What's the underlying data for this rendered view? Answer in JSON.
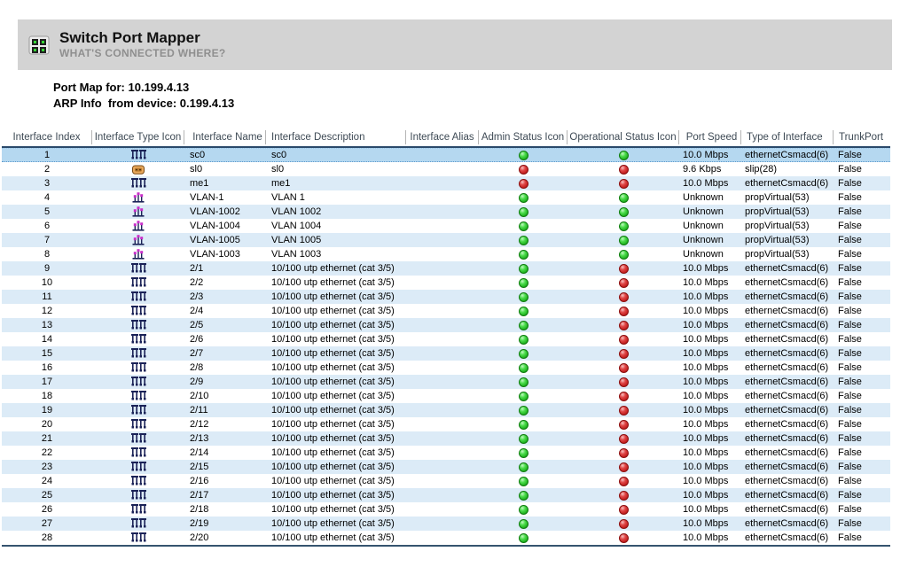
{
  "header": {
    "title": "Switch Port Mapper",
    "subtitle": "WHAT'S CONNECTED WHERE?",
    "app_icon": "switch-ports-icon"
  },
  "info": {
    "port_map_line": "Port Map for: 10.199.4.13",
    "arp_info_line": "ARP Info  from device: 0.199.4.13"
  },
  "colors": {
    "header_bar": "#d3d3d3",
    "row_alt": "#dcebf7",
    "row_selected": "#b5d8f0",
    "status_green": "#21b321",
    "status_red": "#c41f1f",
    "header_underline": "#2b4a6b",
    "vlan_icon_magenta": "#c92ec9",
    "ethernet_icon_navy": "#1a2257",
    "slip_icon_orange": "#e8a85c"
  },
  "table": {
    "columns": [
      "Interface Index",
      "Interface Type Icon",
      "Interface Name",
      "Interface Description",
      "Interface Alias",
      "Admin Status Icon",
      "Operational Status Icon",
      "Port Speed",
      "Type of Interface",
      "TrunkPort"
    ],
    "rows": [
      {
        "index": "1",
        "type_icon": "ethernet-icon",
        "name": "sc0",
        "description": "sc0",
        "alias": "",
        "admin_status": "green",
        "operational_status": "green",
        "port_speed": "10.0 Mbps",
        "type_of_interface": "ethernetCsmacd(6)",
        "trunk_port": "False",
        "selected": true
      },
      {
        "index": "2",
        "type_icon": "slip-icon",
        "name": "sl0",
        "description": "sl0",
        "alias": "",
        "admin_status": "red",
        "operational_status": "red",
        "port_speed": "9.6 Kbps",
        "type_of_interface": "slip(28)",
        "trunk_port": "False",
        "selected": false
      },
      {
        "index": "3",
        "type_icon": "ethernet-icon",
        "name": "me1",
        "description": "me1",
        "alias": "",
        "admin_status": "red",
        "operational_status": "red",
        "port_speed": "10.0 Mbps",
        "type_of_interface": "ethernetCsmacd(6)",
        "trunk_port": "False",
        "selected": false
      },
      {
        "index": "4",
        "type_icon": "vlan-icon",
        "name": "VLAN-1",
        "description": "VLAN 1",
        "alias": "",
        "admin_status": "green",
        "operational_status": "green",
        "port_speed": "Unknown",
        "type_of_interface": "propVirtual(53)",
        "trunk_port": "False",
        "selected": false
      },
      {
        "index": "5",
        "type_icon": "vlan-icon",
        "name": "VLAN-1002",
        "description": "VLAN 1002",
        "alias": "",
        "admin_status": "green",
        "operational_status": "green",
        "port_speed": "Unknown",
        "type_of_interface": "propVirtual(53)",
        "trunk_port": "False",
        "selected": false
      },
      {
        "index": "6",
        "type_icon": "vlan-icon",
        "name": "VLAN-1004",
        "description": "VLAN 1004",
        "alias": "",
        "admin_status": "green",
        "operational_status": "green",
        "port_speed": "Unknown",
        "type_of_interface": "propVirtual(53)",
        "trunk_port": "False",
        "selected": false
      },
      {
        "index": "7",
        "type_icon": "vlan-icon",
        "name": "VLAN-1005",
        "description": "VLAN 1005",
        "alias": "",
        "admin_status": "green",
        "operational_status": "green",
        "port_speed": "Unknown",
        "type_of_interface": "propVirtual(53)",
        "trunk_port": "False",
        "selected": false
      },
      {
        "index": "8",
        "type_icon": "vlan-icon",
        "name": "VLAN-1003",
        "description": "VLAN 1003",
        "alias": "",
        "admin_status": "green",
        "operational_status": "green",
        "port_speed": "Unknown",
        "type_of_interface": "propVirtual(53)",
        "trunk_port": "False",
        "selected": false
      },
      {
        "index": "9",
        "type_icon": "ethernet-icon",
        "name": "2/1",
        "description": "10/100 utp ethernet (cat 3/5)",
        "alias": "",
        "admin_status": "green",
        "operational_status": "red",
        "port_speed": "10.0 Mbps",
        "type_of_interface": "ethernetCsmacd(6)",
        "trunk_port": "False",
        "selected": false
      },
      {
        "index": "10",
        "type_icon": "ethernet-icon",
        "name": "2/2",
        "description": "10/100 utp ethernet (cat 3/5)",
        "alias": "",
        "admin_status": "green",
        "operational_status": "red",
        "port_speed": "10.0 Mbps",
        "type_of_interface": "ethernetCsmacd(6)",
        "trunk_port": "False",
        "selected": false
      },
      {
        "index": "11",
        "type_icon": "ethernet-icon",
        "name": "2/3",
        "description": "10/100 utp ethernet (cat 3/5)",
        "alias": "",
        "admin_status": "green",
        "operational_status": "red",
        "port_speed": "10.0 Mbps",
        "type_of_interface": "ethernetCsmacd(6)",
        "trunk_port": "False",
        "selected": false
      },
      {
        "index": "12",
        "type_icon": "ethernet-icon",
        "name": "2/4",
        "description": "10/100 utp ethernet (cat 3/5)",
        "alias": "",
        "admin_status": "green",
        "operational_status": "red",
        "port_speed": "10.0 Mbps",
        "type_of_interface": "ethernetCsmacd(6)",
        "trunk_port": "False",
        "selected": false
      },
      {
        "index": "13",
        "type_icon": "ethernet-icon",
        "name": "2/5",
        "description": "10/100 utp ethernet (cat 3/5)",
        "alias": "",
        "admin_status": "green",
        "operational_status": "red",
        "port_speed": "10.0 Mbps",
        "type_of_interface": "ethernetCsmacd(6)",
        "trunk_port": "False",
        "selected": false
      },
      {
        "index": "14",
        "type_icon": "ethernet-icon",
        "name": "2/6",
        "description": "10/100 utp ethernet (cat 3/5)",
        "alias": "",
        "admin_status": "green",
        "operational_status": "red",
        "port_speed": "10.0 Mbps",
        "type_of_interface": "ethernetCsmacd(6)",
        "trunk_port": "False",
        "selected": false
      },
      {
        "index": "15",
        "type_icon": "ethernet-icon",
        "name": "2/7",
        "description": "10/100 utp ethernet (cat 3/5)",
        "alias": "",
        "admin_status": "green",
        "operational_status": "red",
        "port_speed": "10.0 Mbps",
        "type_of_interface": "ethernetCsmacd(6)",
        "trunk_port": "False",
        "selected": false
      },
      {
        "index": "16",
        "type_icon": "ethernet-icon",
        "name": "2/8",
        "description": "10/100 utp ethernet (cat 3/5)",
        "alias": "",
        "admin_status": "green",
        "operational_status": "red",
        "port_speed": "10.0 Mbps",
        "type_of_interface": "ethernetCsmacd(6)",
        "trunk_port": "False",
        "selected": false
      },
      {
        "index": "17",
        "type_icon": "ethernet-icon",
        "name": "2/9",
        "description": "10/100 utp ethernet (cat 3/5)",
        "alias": "",
        "admin_status": "green",
        "operational_status": "red",
        "port_speed": "10.0 Mbps",
        "type_of_interface": "ethernetCsmacd(6)",
        "trunk_port": "False",
        "selected": false
      },
      {
        "index": "18",
        "type_icon": "ethernet-icon",
        "name": "2/10",
        "description": "10/100 utp ethernet (cat 3/5)",
        "alias": "",
        "admin_status": "green",
        "operational_status": "red",
        "port_speed": "10.0 Mbps",
        "type_of_interface": "ethernetCsmacd(6)",
        "trunk_port": "False",
        "selected": false
      },
      {
        "index": "19",
        "type_icon": "ethernet-icon",
        "name": "2/11",
        "description": "10/100 utp ethernet (cat 3/5)",
        "alias": "",
        "admin_status": "green",
        "operational_status": "red",
        "port_speed": "10.0 Mbps",
        "type_of_interface": "ethernetCsmacd(6)",
        "trunk_port": "False",
        "selected": false
      },
      {
        "index": "20",
        "type_icon": "ethernet-icon",
        "name": "2/12",
        "description": "10/100 utp ethernet (cat 3/5)",
        "alias": "",
        "admin_status": "green",
        "operational_status": "red",
        "port_speed": "10.0 Mbps",
        "type_of_interface": "ethernetCsmacd(6)",
        "trunk_port": "False",
        "selected": false
      },
      {
        "index": "21",
        "type_icon": "ethernet-icon",
        "name": "2/13",
        "description": "10/100 utp ethernet (cat 3/5)",
        "alias": "",
        "admin_status": "green",
        "operational_status": "red",
        "port_speed": "10.0 Mbps",
        "type_of_interface": "ethernetCsmacd(6)",
        "trunk_port": "False",
        "selected": false
      },
      {
        "index": "22",
        "type_icon": "ethernet-icon",
        "name": "2/14",
        "description": "10/100 utp ethernet (cat 3/5)",
        "alias": "",
        "admin_status": "green",
        "operational_status": "red",
        "port_speed": "10.0 Mbps",
        "type_of_interface": "ethernetCsmacd(6)",
        "trunk_port": "False",
        "selected": false
      },
      {
        "index": "23",
        "type_icon": "ethernet-icon",
        "name": "2/15",
        "description": "10/100 utp ethernet (cat 3/5)",
        "alias": "",
        "admin_status": "green",
        "operational_status": "red",
        "port_speed": "10.0 Mbps",
        "type_of_interface": "ethernetCsmacd(6)",
        "trunk_port": "False",
        "selected": false
      },
      {
        "index": "24",
        "type_icon": "ethernet-icon",
        "name": "2/16",
        "description": "10/100 utp ethernet (cat 3/5)",
        "alias": "",
        "admin_status": "green",
        "operational_status": "red",
        "port_speed": "10.0 Mbps",
        "type_of_interface": "ethernetCsmacd(6)",
        "trunk_port": "False",
        "selected": false
      },
      {
        "index": "25",
        "type_icon": "ethernet-icon",
        "name": "2/17",
        "description": "10/100 utp ethernet (cat 3/5)",
        "alias": "",
        "admin_status": "green",
        "operational_status": "red",
        "port_speed": "10.0 Mbps",
        "type_of_interface": "ethernetCsmacd(6)",
        "trunk_port": "False",
        "selected": false
      },
      {
        "index": "26",
        "type_icon": "ethernet-icon",
        "name": "2/18",
        "description": "10/100 utp ethernet (cat 3/5)",
        "alias": "",
        "admin_status": "green",
        "operational_status": "red",
        "port_speed": "10.0 Mbps",
        "type_of_interface": "ethernetCsmacd(6)",
        "trunk_port": "False",
        "selected": false
      },
      {
        "index": "27",
        "type_icon": "ethernet-icon",
        "name": "2/19",
        "description": "10/100 utp ethernet (cat 3/5)",
        "alias": "",
        "admin_status": "green",
        "operational_status": "red",
        "port_speed": "10.0 Mbps",
        "type_of_interface": "ethernetCsmacd(6)",
        "trunk_port": "False",
        "selected": false
      },
      {
        "index": "28",
        "type_icon": "ethernet-icon",
        "name": "2/20",
        "description": "10/100 utp ethernet (cat 3/5)",
        "alias": "",
        "admin_status": "green",
        "operational_status": "red",
        "port_speed": "10.0 Mbps",
        "type_of_interface": "ethernetCsmacd(6)",
        "trunk_port": "False",
        "selected": false
      }
    ]
  }
}
